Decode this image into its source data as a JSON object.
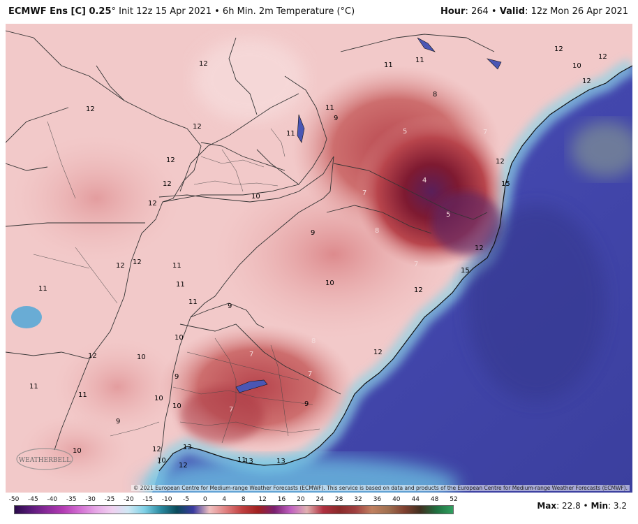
{
  "header": {
    "model": "ECMWF Ens [C] 0.25",
    "degree": "°",
    "init": "Init 12z 15 Apr 2021",
    "sep": "•",
    "field": "6h Min. 2m Temperature (°C)",
    "hour_label": "Hour",
    "hour_value": ": 264",
    "valid_label": "Valid",
    "valid_value": ": 12z Mon 26 Apr 2021"
  },
  "map": {
    "copyright": "© 2021 European Centre for Medium-range Weather Forecasts (ECMWF). This service is based on data and products of the European Centre for Medium-range Weather Forecasts (ECMWF).",
    "logo_text": "WEATHERBELL",
    "labels": [
      "12",
      "11",
      "11",
      "12",
      "12",
      "12",
      "11",
      "9",
      "8",
      "7",
      "5",
      "4",
      "5",
      "12",
      "15",
      "11",
      "12",
      "12",
      "10",
      "12",
      "12",
      "10",
      "7",
      "8",
      "7",
      "11",
      "12",
      "11",
      "11",
      "12",
      "9",
      "10",
      "11",
      "10",
      "12",
      "10",
      "9",
      "8",
      "7",
      "7",
      "12",
      "12",
      "12",
      "11",
      "10",
      "10",
      "9",
      "7",
      "9",
      "11",
      "9",
      "13",
      "11",
      "13",
      "13",
      "12",
      "12",
      "10",
      "12",
      "15",
      "10"
    ],
    "colors": {
      "ocean": "#3b3f9e",
      "land_warm": "#f2c7c7",
      "cold_core": "#7a1a30"
    }
  },
  "colorbar": {
    "ticks": [
      "-50",
      "-45",
      "-40",
      "-35",
      "-30",
      "-25",
      "-20",
      "-15",
      "-10",
      "-5",
      "0",
      "4",
      "8",
      "12",
      "16",
      "20",
      "24",
      "28",
      "32",
      "36",
      "40",
      "44",
      "48",
      "52"
    ],
    "max_label": "Max",
    "max_value": ": 22.8",
    "sep": "•",
    "min_label": "Min",
    "min_value": ": 3.2"
  }
}
